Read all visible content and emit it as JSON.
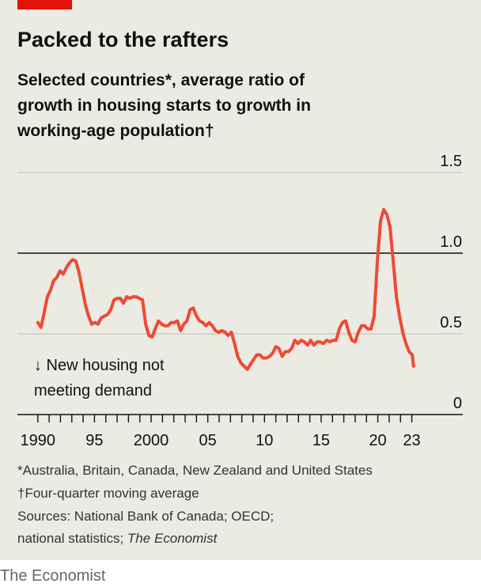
{
  "chart_data": {
    "type": "line",
    "title": "Packed to the rafters",
    "subtitle_lines": [
      "Selected countries*, average ratio of",
      "growth in housing starts to growth in",
      "working-age population†"
    ],
    "annotation_lines": [
      "↓ New housing not",
      "meeting demand"
    ],
    "footnotes": [
      "*Australia, Britain, Canada, New Zealand and United States",
      "†Four-quarter moving average",
      "Sources: National Bank of Canada; OECD;"
    ],
    "source_last_line": "national statistics;",
    "source_last_italic": "The Economist",
    "credit": "The Economist",
    "color": "#ee4a34",
    "reference_line": 1,
    "grid": true,
    "xlim": [
      1988.2,
      2027.5
    ],
    "ylim": [
      0,
      1.5
    ],
    "xticks": [
      1990,
      {
        "value": 1995,
        "label": "95"
      },
      2000,
      {
        "value": 2005,
        "label": "05"
      },
      {
        "value": 2010,
        "label": "10"
      },
      {
        "value": 2015,
        "label": "15"
      },
      {
        "value": 2020,
        "label": "20"
      },
      {
        "value": 2023,
        "label": "23"
      }
    ],
    "xminorticks": [
      1991,
      1992,
      1993,
      1994,
      1996,
      1997,
      1998,
      1999,
      2001,
      2002,
      2003,
      2004,
      2006,
      2007,
      2008,
      2009,
      2011,
      2012,
      2013,
      2014,
      2016,
      2017,
      2018,
      2019,
      2021,
      2022
    ],
    "yticks": [
      0,
      0.5,
      {
        "value": 1,
        "label": "1.0"
      },
      1.5
    ],
    "x": [
      1990,
      1990.28,
      1990.56,
      1990.84,
      1991.12,
      1991.4,
      1991.68,
      1991.96,
      1992.24,
      1992.52,
      1992.8,
      1993.08,
      1993.36,
      1993.64,
      1993.92,
      1994.2,
      1994.48,
      1994.76,
      1995.04,
      1995.32,
      1995.6,
      1995.88,
      1996.16,
      1996.44,
      1996.72,
      1997,
      1997.28,
      1997.56,
      1997.84,
      1998.12,
      1998.4,
      1998.68,
      1998.96,
      1999.24,
      1999.52,
      1999.8,
      2000.08,
      2000.36,
      2000.64,
      2000.92,
      2001.2,
      2001.48,
      2001.76,
      2002.04,
      2002.32,
      2002.6,
      2002.88,
      2003.16,
      2003.44,
      2003.72,
      2004,
      2004.28,
      2004.56,
      2004.84,
      2005.12,
      2005.4,
      2005.68,
      2005.96,
      2006.24,
      2006.52,
      2006.8,
      2007.08,
      2007.36,
      2007.64,
      2007.92,
      2008.2,
      2008.48,
      2008.76,
      2009.04,
      2009.32,
      2009.6,
      2009.88,
      2010.16,
      2010.44,
      2010.72,
      2011,
      2011.28,
      2011.56,
      2011.84,
      2012.12,
      2012.4,
      2012.68,
      2012.96,
      2013.24,
      2013.52,
      2013.8,
      2014.08,
      2014.36,
      2014.64,
      2014.92,
      2015.2,
      2015.48,
      2015.76,
      2016.04,
      2016.32,
      2016.6,
      2016.88,
      2017.16,
      2017.44,
      2017.72,
      2018,
      2018.28,
      2018.56,
      2018.84,
      2019.12,
      2019.4,
      2019.68,
      2019.96,
      2020.24,
      2020.52,
      2020.8,
      2021.08,
      2021.36,
      2021.64,
      2021.92,
      2022.2,
      2022.48,
      2022.76,
      2023.04,
      2023.15
    ],
    "values": [
      0.57,
      0.54,
      0.63,
      0.73,
      0.77,
      0.83,
      0.85,
      0.89,
      0.87,
      0.91,
      0.94,
      0.96,
      0.95,
      0.88,
      0.78,
      0.68,
      0.61,
      0.56,
      0.57,
      0.56,
      0.6,
      0.61,
      0.62,
      0.65,
      0.71,
      0.72,
      0.72,
      0.69,
      0.73,
      0.72,
      0.73,
      0.73,
      0.72,
      0.71,
      0.56,
      0.49,
      0.48,
      0.53,
      0.58,
      0.56,
      0.55,
      0.55,
      0.57,
      0.57,
      0.58,
      0.52,
      0.56,
      0.58,
      0.65,
      0.66,
      0.61,
      0.58,
      0.57,
      0.55,
      0.57,
      0.55,
      0.52,
      0.51,
      0.52,
      0.51,
      0.49,
      0.51,
      0.44,
      0.36,
      0.32,
      0.3,
      0.28,
      0.31,
      0.34,
      0.37,
      0.37,
      0.35,
      0.35,
      0.36,
      0.38,
      0.42,
      0.41,
      0.36,
      0.39,
      0.39,
      0.41,
      0.46,
      0.44,
      0.46,
      0.45,
      0.43,
      0.46,
      0.43,
      0.45,
      0.45,
      0.44,
      0.46,
      0.45,
      0.46,
      0.46,
      0.53,
      0.57,
      0.58,
      0.51,
      0.46,
      0.45,
      0.51,
      0.55,
      0.55,
      0.53,
      0.53,
      0.61,
      0.95,
      1.2,
      1.27,
      1.24,
      1.16,
      0.95,
      0.73,
      0.61,
      0.51,
      0.44,
      0.39,
      0.37,
      0.3
    ]
  }
}
